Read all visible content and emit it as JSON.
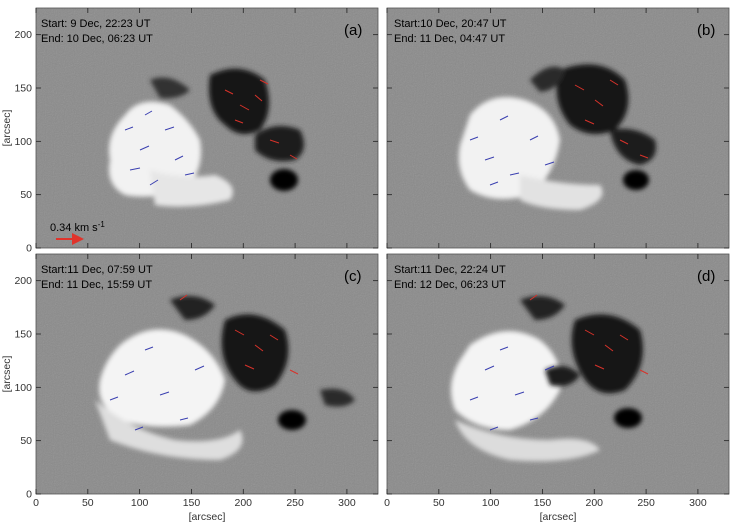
{
  "figure": {
    "axis_unit_label": "[arcsec]",
    "x_ticks": [
      "0",
      "50",
      "100",
      "150",
      "200",
      "250",
      "300"
    ],
    "y_ticks": [
      "0",
      "50",
      "100",
      "150",
      "200"
    ],
    "x_range": [
      0,
      330
    ],
    "y_range": [
      0,
      225
    ],
    "colors": {
      "background_field": "#8a8a8a",
      "positive_polarity": "#f4f4f4",
      "negative_polarity": "#101010",
      "positive_velocity_arrows": "#3a3fb0",
      "negative_velocity_arrows": "#d8322a",
      "reference_arrow": "#e0332b"
    },
    "reference_vector": {
      "label": "0.34 km s",
      "superscript": "-1",
      "color": "#e0332b"
    },
    "panels": [
      {
        "id": "a",
        "label": "(a)",
        "start": "Start:  9 Dec, 22:23 UT",
        "end": "End: 10 Dec, 06:23 UT"
      },
      {
        "id": "b",
        "label": "(b)",
        "start": "Start:10 Dec, 20:47 UT",
        "end": "End: 11 Dec, 04:47 UT"
      },
      {
        "id": "c",
        "label": "(c)",
        "start": "Start:11 Dec, 07:59 UT",
        "end": "End: 11 Dec, 15:59 UT"
      },
      {
        "id": "d",
        "label": "(d)",
        "start": "Start:11 Dec, 22:24 UT",
        "end": "End: 12 Dec, 06:23 UT"
      }
    ]
  }
}
